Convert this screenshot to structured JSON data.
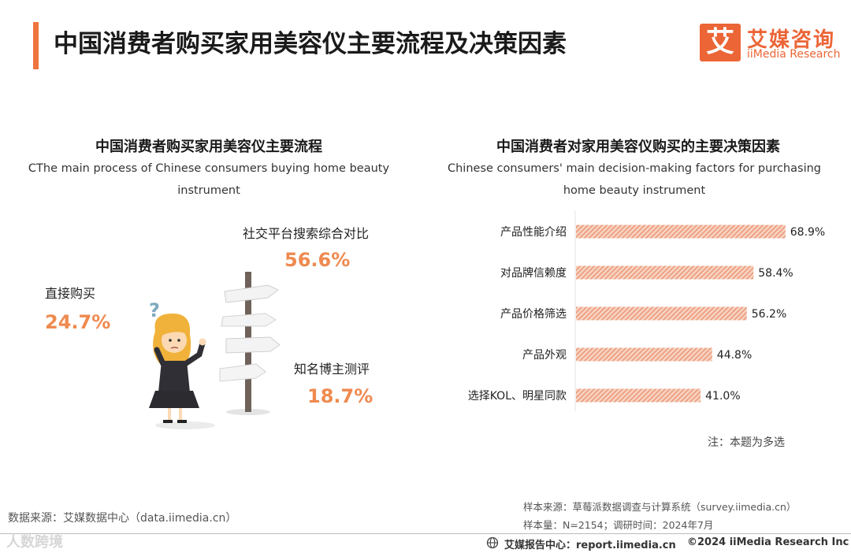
{
  "header": {
    "title": "中国消费者购买家用美容仪主要流程及决策因素",
    "logo_mark": "艾",
    "logo_cn": "艾媒咨询",
    "logo_en": "iiMedia Research"
  },
  "left_panel": {
    "title": "中国消费者购买家用美容仪主要流程",
    "subtitle": "CThe main process of Chinese consumers buying home beauty instrument",
    "steps": [
      {
        "label": "社交平台搜索综合对比",
        "value": "56.6%"
      },
      {
        "label": "直接购买",
        "value": "24.7%"
      },
      {
        "label": "知名博主测评",
        "value": "18.7%"
      }
    ],
    "question_mark": "?"
  },
  "right_panel": {
    "title": "中国消费者对家用美容仪购买的主要决策因素",
    "subtitle": "Chinese consumers' main decision-making factors for purchasing home beauty instrument",
    "note": "注：本题为多选"
  },
  "chart_data": {
    "type": "bar",
    "orientation": "horizontal",
    "title": "中国消费者对家用美容仪购买的主要决策因素",
    "categories": [
      "产品性能介绍",
      "对品牌信赖度",
      "产品价格筛选",
      "产品外观",
      "选择KOL、明星同款"
    ],
    "values": [
      68.9,
      58.4,
      56.2,
      44.8,
      41.0
    ],
    "value_labels": [
      "68.9%",
      "58.4%",
      "56.2%",
      "44.8%",
      "41.0%"
    ],
    "unit": "%",
    "bar_color": "#f0a98a",
    "grid": false
  },
  "footer": {
    "source_left": "数据来源：艾媒数据中心（data.iimedia.cn）",
    "sample_source": "样本来源：草莓派数据调查与计算系统（survey.iimedia.cn）",
    "sample_size": "样本量：N=2154；调研时间：2024年7月",
    "center": "艾媒报告中心：report.iimedia.cn",
    "copyright": "©2024 iiMedia Research Inc",
    "watermark": "人数跨境"
  }
}
